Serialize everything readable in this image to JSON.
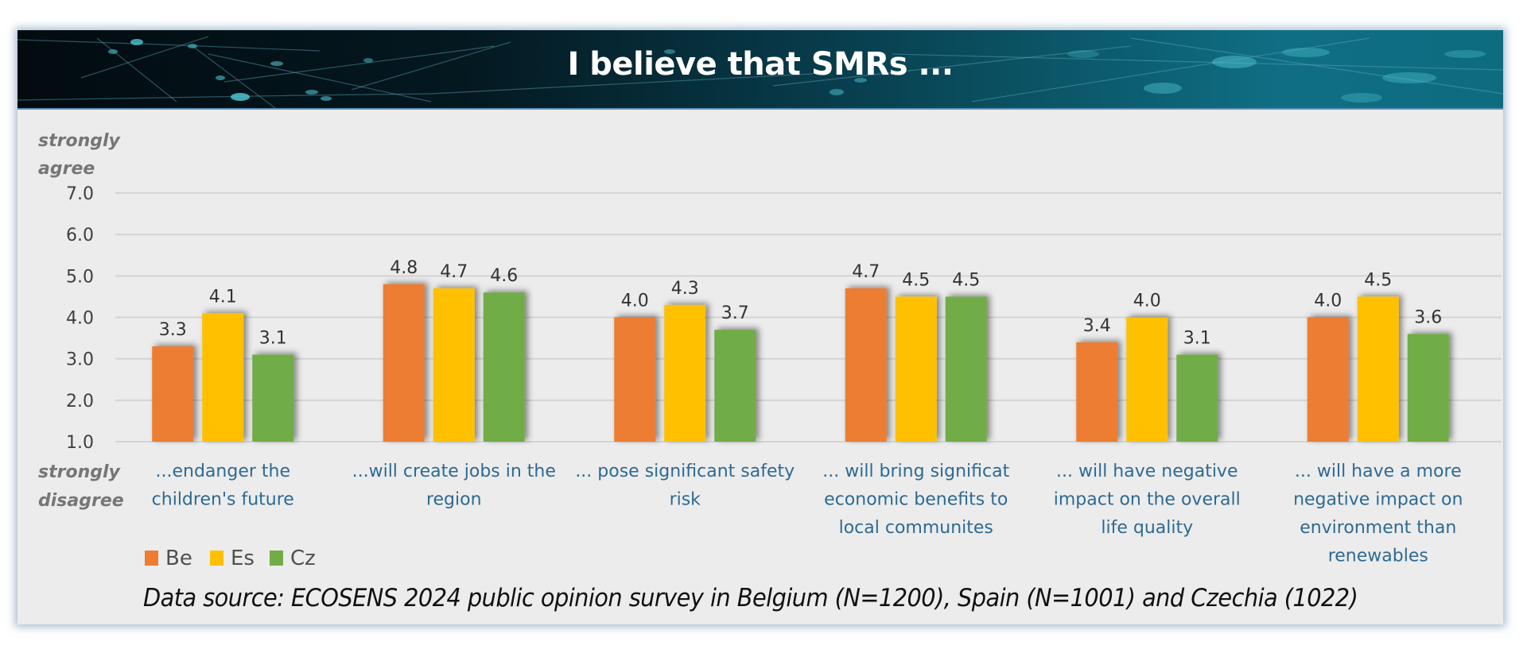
{
  "chart_data": {
    "type": "bar",
    "title": "I believe that SMRs ...",
    "xlabel": "",
    "ylabel": "",
    "ylim": [
      1.0,
      7.0
    ],
    "yticks": [
      "1.0",
      "2.0",
      "3.0",
      "4.0",
      "5.0",
      "6.0",
      "7.0"
    ],
    "y_top_label": [
      "strongly",
      "agree"
    ],
    "y_bottom_label": [
      "strongly",
      "disagree"
    ],
    "grid": true,
    "legend_position": "bottom-left",
    "categories": [
      [
        "...endanger the",
        "children's future"
      ],
      [
        "...will create jobs in the",
        "region"
      ],
      [
        "... pose significant safety",
        "risk"
      ],
      [
        "... will bring significat",
        "economic benefits to",
        "local communites"
      ],
      [
        "... will have negative",
        "impact on the overall",
        "life quality"
      ],
      [
        "... will have a more",
        "negative impact on",
        "environment than",
        "renewables"
      ]
    ],
    "series": [
      {
        "name": "Be",
        "color": "#ed7d31",
        "values": [
          3.3,
          4.8,
          4.0,
          4.7,
          3.4,
          4.0
        ]
      },
      {
        "name": "Es",
        "color": "#ffc000",
        "values": [
          4.1,
          4.7,
          4.3,
          4.5,
          4.0,
          4.5
        ]
      },
      {
        "name": "Cz",
        "color": "#70ad47",
        "values": [
          3.1,
          4.6,
          3.7,
          4.5,
          3.1,
          3.6
        ]
      }
    ],
    "data_labels": [
      [
        "3.3",
        "4.8",
        "4.0",
        "4.7",
        "3.4",
        "4.0"
      ],
      [
        "4.1",
        "4.7",
        "4.3",
        "4.5",
        "4.0",
        "4.5"
      ],
      [
        "3.1",
        "4.6",
        "3.7",
        "4.5",
        "3.1",
        "3.6"
      ]
    ],
    "footnote": "Data source: ECOSENS 2024 public opinion survey in Belgium (N=1200), Spain (N=1001) and Czechia (1022)"
  }
}
